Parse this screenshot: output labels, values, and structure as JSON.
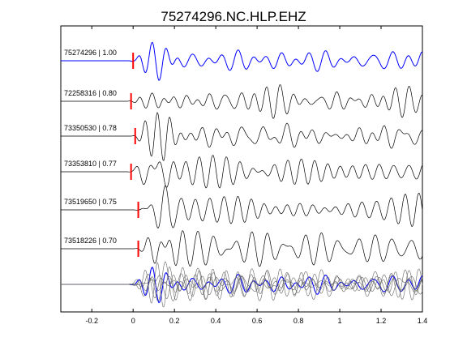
{
  "chart_data": {
    "type": "line",
    "title": "75274296.NC.HLP.EHZ",
    "xlabel": "",
    "ylabel": "",
    "xlim": [
      -0.35,
      1.4
    ],
    "x_ticks": [
      -0.2,
      0,
      0.2,
      0.4,
      0.6,
      0.8,
      1,
      1.2,
      1.4
    ],
    "x_tick_labels": [
      "-0.2",
      "0",
      "0.2",
      "0.4",
      "0.6",
      "0.8",
      "1",
      "1.2",
      "1.4"
    ],
    "grid": false,
    "series": [
      {
        "name": "75274296 | 1.00",
        "event_id": "75274296",
        "correlation": 1.0,
        "pick_time": 0.0,
        "color": "#0000ff"
      },
      {
        "name": "72258316 | 0.80",
        "event_id": "72258316",
        "correlation": 0.8,
        "pick_time": -0.01,
        "color": "#000000"
      },
      {
        "name": "73350530 | 0.78",
        "event_id": "73350530",
        "correlation": 0.78,
        "pick_time": 0.01,
        "color": "#000000"
      },
      {
        "name": "73353810 | 0.77",
        "event_id": "73353810",
        "correlation": 0.77,
        "pick_time": -0.01,
        "color": "#000000"
      },
      {
        "name": "73519650 | 0.75",
        "event_id": "73519650",
        "correlation": 0.75,
        "pick_time": 0.025,
        "color": "#000000"
      },
      {
        "name": "73518226 | 0.70",
        "event_id": "73518226",
        "correlation": 0.7,
        "pick_time": 0.025,
        "color": "#000000"
      }
    ],
    "pick_marker_color": "#ff0000",
    "stack_row": true
  }
}
